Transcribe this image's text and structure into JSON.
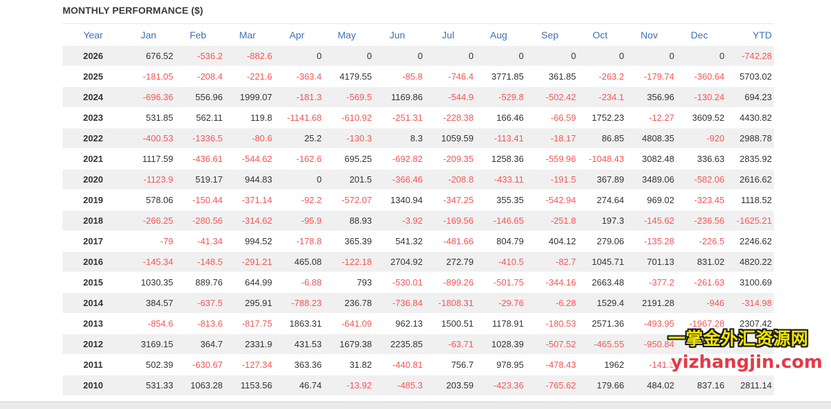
{
  "title": "MONTHLY PERFORMANCE ($)",
  "columns": [
    "Year",
    "Jan",
    "Feb",
    "Mar",
    "Apr",
    "May",
    "Jun",
    "Jul",
    "Aug",
    "Sep",
    "Oct",
    "Nov",
    "Dec",
    "YTD"
  ],
  "rows": [
    {
      "year": "2026",
      "values": [
        "676.52",
        "-536.2",
        "-882.6",
        "0",
        "0",
        "0",
        "0",
        "0",
        "0",
        "0",
        "0",
        "0"
      ],
      "ytd": "-742.28"
    },
    {
      "year": "2025",
      "values": [
        "-181.05",
        "-208.4",
        "-221.6",
        "-363.4",
        "4179.55",
        "-85.8",
        "-746.4",
        "3771.85",
        "361.85",
        "-263.2",
        "-179.74",
        "-360.64"
      ],
      "ytd": "5703.02"
    },
    {
      "year": "2024",
      "values": [
        "-696.36",
        "556.96",
        "1999.07",
        "-181.3",
        "-569.5",
        "1169.86",
        "-544.9",
        "-529.8",
        "-502.42",
        "-234.1",
        "356.96",
        "-130.24"
      ],
      "ytd": "694.23"
    },
    {
      "year": "2023",
      "values": [
        "531.85",
        "562.11",
        "119.8",
        "-1141.68",
        "-610.92",
        "-251.31",
        "-228.38",
        "166.46",
        "-66.59",
        "1752.23",
        "-12.27",
        "3609.52"
      ],
      "ytd": "4430.82"
    },
    {
      "year": "2022",
      "values": [
        "-400.53",
        "-1336.5",
        "-80.6",
        "25.2",
        "-130.3",
        "8.3",
        "1059.59",
        "-113.41",
        "-18.17",
        "86.85",
        "4808.35",
        "-920"
      ],
      "ytd": "2988.78"
    },
    {
      "year": "2021",
      "values": [
        "1117.59",
        "-436.61",
        "-544.62",
        "-162.6",
        "695.25",
        "-692.82",
        "-209.35",
        "1258.36",
        "-559.96",
        "-1048.43",
        "3082.48",
        "336.63"
      ],
      "ytd": "2835.92"
    },
    {
      "year": "2020",
      "values": [
        "-1123.9",
        "519.17",
        "944.83",
        "0",
        "201.5",
        "-366.46",
        "-208.8",
        "-433.11",
        "-191.5",
        "367.89",
        "3489.06",
        "-582.06"
      ],
      "ytd": "2616.62"
    },
    {
      "year": "2019",
      "values": [
        "578.06",
        "-150.44",
        "-371.14",
        "-92.2",
        "-572.07",
        "1340.94",
        "-347.25",
        "355.35",
        "-542.94",
        "274.64",
        "969.02",
        "-323.45"
      ],
      "ytd": "1118.52"
    },
    {
      "year": "2018",
      "values": [
        "-266.25",
        "-280.56",
        "-314.62",
        "-95.9",
        "88.93",
        "-3.92",
        "-169.56",
        "-146.65",
        "-251.8",
        "197.3",
        "-145.62",
        "-236.56"
      ],
      "ytd": "-1625.21"
    },
    {
      "year": "2017",
      "values": [
        "-79",
        "-41.34",
        "994.52",
        "-178.8",
        "365.39",
        "541.32",
        "-481.66",
        "804.79",
        "404.12",
        "279.06",
        "-135.28",
        "-226.5"
      ],
      "ytd": "2246.62"
    },
    {
      "year": "2016",
      "values": [
        "-145.34",
        "-148.5",
        "-291.21",
        "465.08",
        "-122.18",
        "2704.92",
        "272.79",
        "-410.5",
        "-82.7",
        "1045.71",
        "701.13",
        "831.02"
      ],
      "ytd": "4820.22"
    },
    {
      "year": "2015",
      "values": [
        "1030.35",
        "889.76",
        "644.99",
        "-6.88",
        "793",
        "-530.01",
        "-899.26",
        "-501.75",
        "-344.16",
        "2663.48",
        "-377.2",
        "-261.63"
      ],
      "ytd": "3100.69"
    },
    {
      "year": "2014",
      "values": [
        "384.57",
        "-637.5",
        "295.91",
        "-788.23",
        "236.78",
        "-736.84",
        "-1808.31",
        "-29.76",
        "-6.28",
        "1529.4",
        "2191.28",
        "-946"
      ],
      "ytd": "-314.98"
    },
    {
      "year": "2013",
      "values": [
        "-854.6",
        "-813.6",
        "-817.75",
        "1863.31",
        "-641.09",
        "962.13",
        "1500.51",
        "1178.91",
        "-180.53",
        "2571.36",
        "-493.95",
        "-1967.28"
      ],
      "ytd": "2307.42"
    },
    {
      "year": "2012",
      "values": [
        "3169.15",
        "364.7",
        "2331.9",
        "431.53",
        "1679.38",
        "2235.85",
        "-63.71",
        "1028.39",
        "-507.52",
        "-465.55",
        "-950.84",
        ""
      ],
      "ytd": ""
    },
    {
      "year": "2011",
      "values": [
        "502.39",
        "-630.67",
        "-127.34",
        "363.36",
        "31.82",
        "-440.81",
        "756.7",
        "978.95",
        "-478.43",
        "1962",
        "-141.3",
        ""
      ],
      "ytd": ""
    },
    {
      "year": "2010",
      "values": [
        "531.33",
        "1063.28",
        "1153.56",
        "46.74",
        "-13.92",
        "-485.3",
        "203.59",
        "-423.36",
        "-765.62",
        "179.66",
        "484.02",
        "837.16"
      ],
      "ytd": "2811.14"
    }
  ],
  "watermark": {
    "line1": "一掌金外汇资源网",
    "line2": "yizhangjin.com"
  },
  "colors": {
    "header": "#3f6fb5",
    "negative": "#f25757",
    "positive": "#333333",
    "stripe": "#f0f0f0"
  }
}
